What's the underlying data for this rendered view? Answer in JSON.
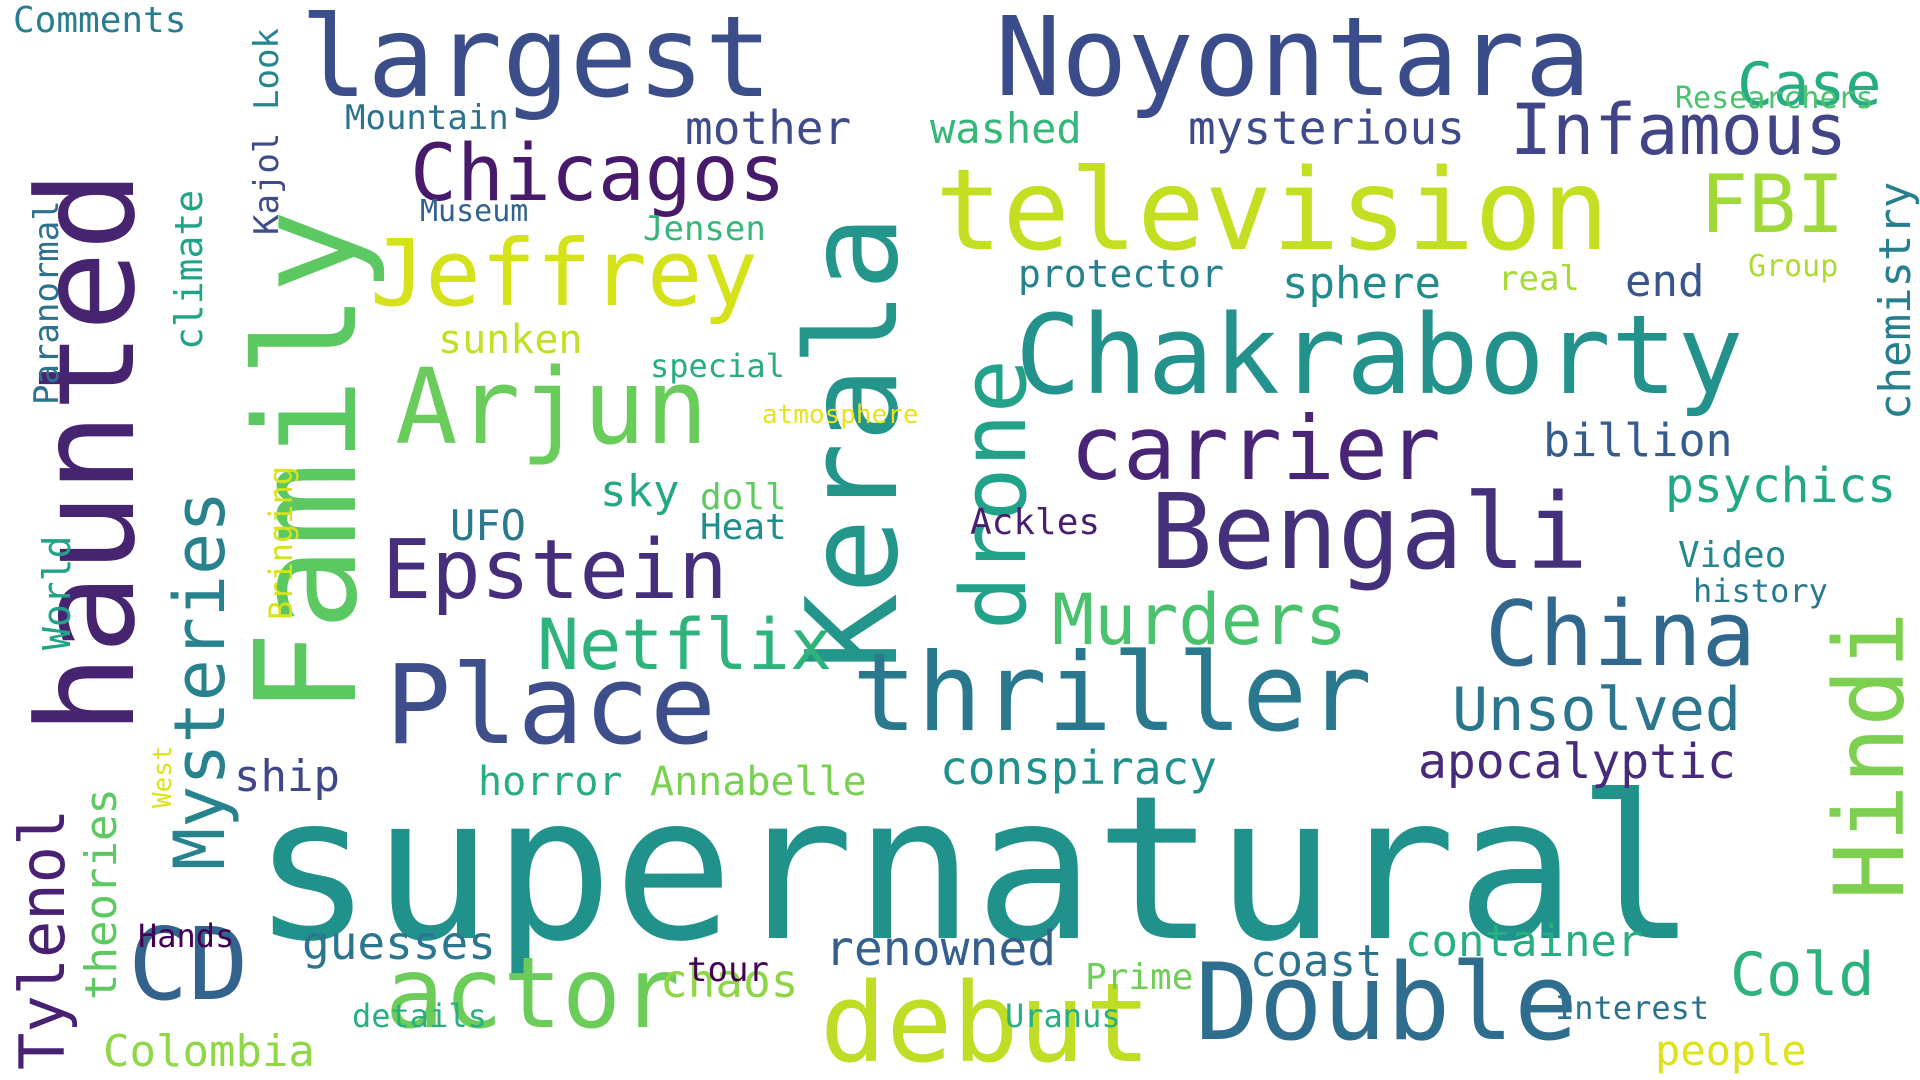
{
  "words": [
    {
      "text": "supernatural",
      "color": "#21918c",
      "vertical": false
    },
    {
      "text": "haunted",
      "color": "#46246f",
      "vertical": true
    },
    {
      "text": "Kerala",
      "color": "#23958a",
      "vertical": true
    },
    {
      "text": "Family",
      "color": "#5bc862",
      "vertical": true
    },
    {
      "text": "Noyontara",
      "color": "#3b4c8b",
      "vertical": false
    },
    {
      "text": "largest",
      "color": "#3c4e8a",
      "vertical": false
    },
    {
      "text": "television",
      "color": "#c4df22",
      "vertical": false
    },
    {
      "text": "Chakraborty",
      "color": "#23918c",
      "vertical": false
    },
    {
      "text": "thriller",
      "color": "#2a788e",
      "vertical": false
    },
    {
      "text": "Bengali",
      "color": "#45317b",
      "vertical": false
    },
    {
      "text": "Double",
      "color": "#2f6d8e",
      "vertical": false
    },
    {
      "text": "debut",
      "color": "#bedd24",
      "vertical": false
    },
    {
      "text": "actor",
      "color": "#6ccc59",
      "vertical": false
    },
    {
      "text": "Place",
      "color": "#3d4e8a",
      "vertical": false
    },
    {
      "text": "drone",
      "color": "#22a289",
      "vertical": true
    },
    {
      "text": "Hindi",
      "color": "#7dd04f",
      "vertical": true
    },
    {
      "text": "China",
      "color": "#31688e",
      "vertical": false
    },
    {
      "text": "Arjun",
      "color": "#6acd5b",
      "vertical": false
    },
    {
      "text": "Jeffrey",
      "color": "#d5e21a",
      "vertical": false
    },
    {
      "text": "carrier",
      "color": "#482576",
      "vertical": false
    },
    {
      "text": "Epstein",
      "color": "#472e7c",
      "vertical": false
    },
    {
      "text": "CD",
      "color": "#33628d",
      "vertical": false
    },
    {
      "text": "Mysteries",
      "color": "#27828e",
      "vertical": true
    },
    {
      "text": "Chicagos",
      "color": "#471a6b",
      "vertical": false
    },
    {
      "text": "Infamous",
      "color": "#414487",
      "vertical": false
    },
    {
      "text": "Netflix",
      "color": "#2eb37c",
      "vertical": false
    },
    {
      "text": "Murders",
      "color": "#4ac16d",
      "vertical": false
    },
    {
      "text": "Unsolved",
      "color": "#2b758e",
      "vertical": false
    },
    {
      "text": "FBI",
      "color": "#a0da39",
      "vertical": false
    },
    {
      "text": "Tylenol",
      "color": "#482173",
      "vertical": true
    },
    {
      "text": "Cold",
      "color": "#2db27d",
      "vertical": false
    },
    {
      "text": "Case",
      "color": "#26ad81",
      "vertical": false
    },
    {
      "text": "apocalyptic",
      "color": "#472a7a",
      "vertical": false
    },
    {
      "text": "container",
      "color": "#29af7f",
      "vertical": false
    },
    {
      "text": "renowned",
      "color": "#355f8d",
      "vertical": false
    },
    {
      "text": "conspiracy",
      "color": "#21908d",
      "vertical": false
    },
    {
      "text": "psychics",
      "color": "#22a884",
      "vertical": false
    },
    {
      "text": "billion",
      "color": "#365c8d",
      "vertical": false
    },
    {
      "text": "chemistry",
      "color": "#277f8e",
      "vertical": true
    },
    {
      "text": "mysterious",
      "color": "#3e4a89",
      "vertical": false
    },
    {
      "text": "mother",
      "color": "#3e4a89",
      "vertical": false
    },
    {
      "text": "guesses",
      "color": "#2b758e",
      "vertical": false
    },
    {
      "text": "chaos",
      "color": "#8ed645",
      "vertical": false
    },
    {
      "text": "theories",
      "color": "#5ec962",
      "vertical": true
    },
    {
      "text": "Colombia",
      "color": "#8fd744",
      "vertical": false
    },
    {
      "text": "climate",
      "color": "#20a386",
      "vertical": true
    },
    {
      "text": "sphere",
      "color": "#228c8d",
      "vertical": false
    },
    {
      "text": "end",
      "color": "#39558c",
      "vertical": false
    },
    {
      "text": "coast",
      "color": "#2c718e",
      "vertical": false
    },
    {
      "text": "people",
      "color": "#dde318",
      "vertical": false
    },
    {
      "text": "ship",
      "color": "#3f4788",
      "vertical": false
    },
    {
      "text": "horror",
      "color": "#27ad81",
      "vertical": false
    },
    {
      "text": "Annabelle",
      "color": "#7ad151",
      "vertical": false
    },
    {
      "text": "UFO",
      "color": "#2a788e",
      "vertical": false
    },
    {
      "text": "sky",
      "color": "#22a884",
      "vertical": false
    },
    {
      "text": "sunken",
      "color": "#c2df23",
      "vertical": false
    },
    {
      "text": "washed",
      "color": "#35b779",
      "vertical": false
    },
    {
      "text": "protector",
      "color": "#26828e",
      "vertical": false
    },
    {
      "text": "Jensen",
      "color": "#35b779",
      "vertical": false
    },
    {
      "text": "World",
      "color": "#20a386",
      "vertical": true
    },
    {
      "text": "Paranormal",
      "color": "#2c728e",
      "vertical": true
    },
    {
      "text": "Kajol",
      "color": "#3e4c8a",
      "vertical": true
    },
    {
      "text": "Look",
      "color": "#25848e",
      "vertical": true
    },
    {
      "text": "Comments",
      "color": "#287d8e",
      "vertical": false
    },
    {
      "text": "Mountain",
      "color": "#2c728e",
      "vertical": false
    },
    {
      "text": "Museum",
      "color": "#33638d",
      "vertical": false
    },
    {
      "text": "Researchers",
      "color": "#4ac16d",
      "vertical": false
    },
    {
      "text": "Group",
      "color": "#addc30",
      "vertical": false
    },
    {
      "text": "real",
      "color": "#a5db36",
      "vertical": false
    },
    {
      "text": "special",
      "color": "#27ad81",
      "vertical": false
    },
    {
      "text": "atmosphere",
      "color": "#e8e419",
      "vertical": false
    },
    {
      "text": "doll",
      "color": "#5ec962",
      "vertical": false
    },
    {
      "text": "Heat",
      "color": "#228d8d",
      "vertical": false
    },
    {
      "text": "Ackles",
      "color": "#481f70",
      "vertical": false
    },
    {
      "text": "Video",
      "color": "#24878e",
      "vertical": false
    },
    {
      "text": "history",
      "color": "#29788e",
      "vertical": false
    },
    {
      "text": "Bringing",
      "color": "#d8e219",
      "vertical": true
    },
    {
      "text": "West",
      "color": "#dde318",
      "vertical": true
    },
    {
      "text": "Hands",
      "color": "#440154",
      "vertical": false
    },
    {
      "text": "tour",
      "color": "#440154",
      "vertical": false
    },
    {
      "text": "details",
      "color": "#29af7f",
      "vertical": false
    },
    {
      "text": "Prime",
      "color": "#6ece58",
      "vertical": false
    },
    {
      "text": "Uranus",
      "color": "#2ab07f",
      "vertical": false
    },
    {
      "text": "Interest",
      "color": "#2c718e",
      "vertical": false
    }
  ]
}
